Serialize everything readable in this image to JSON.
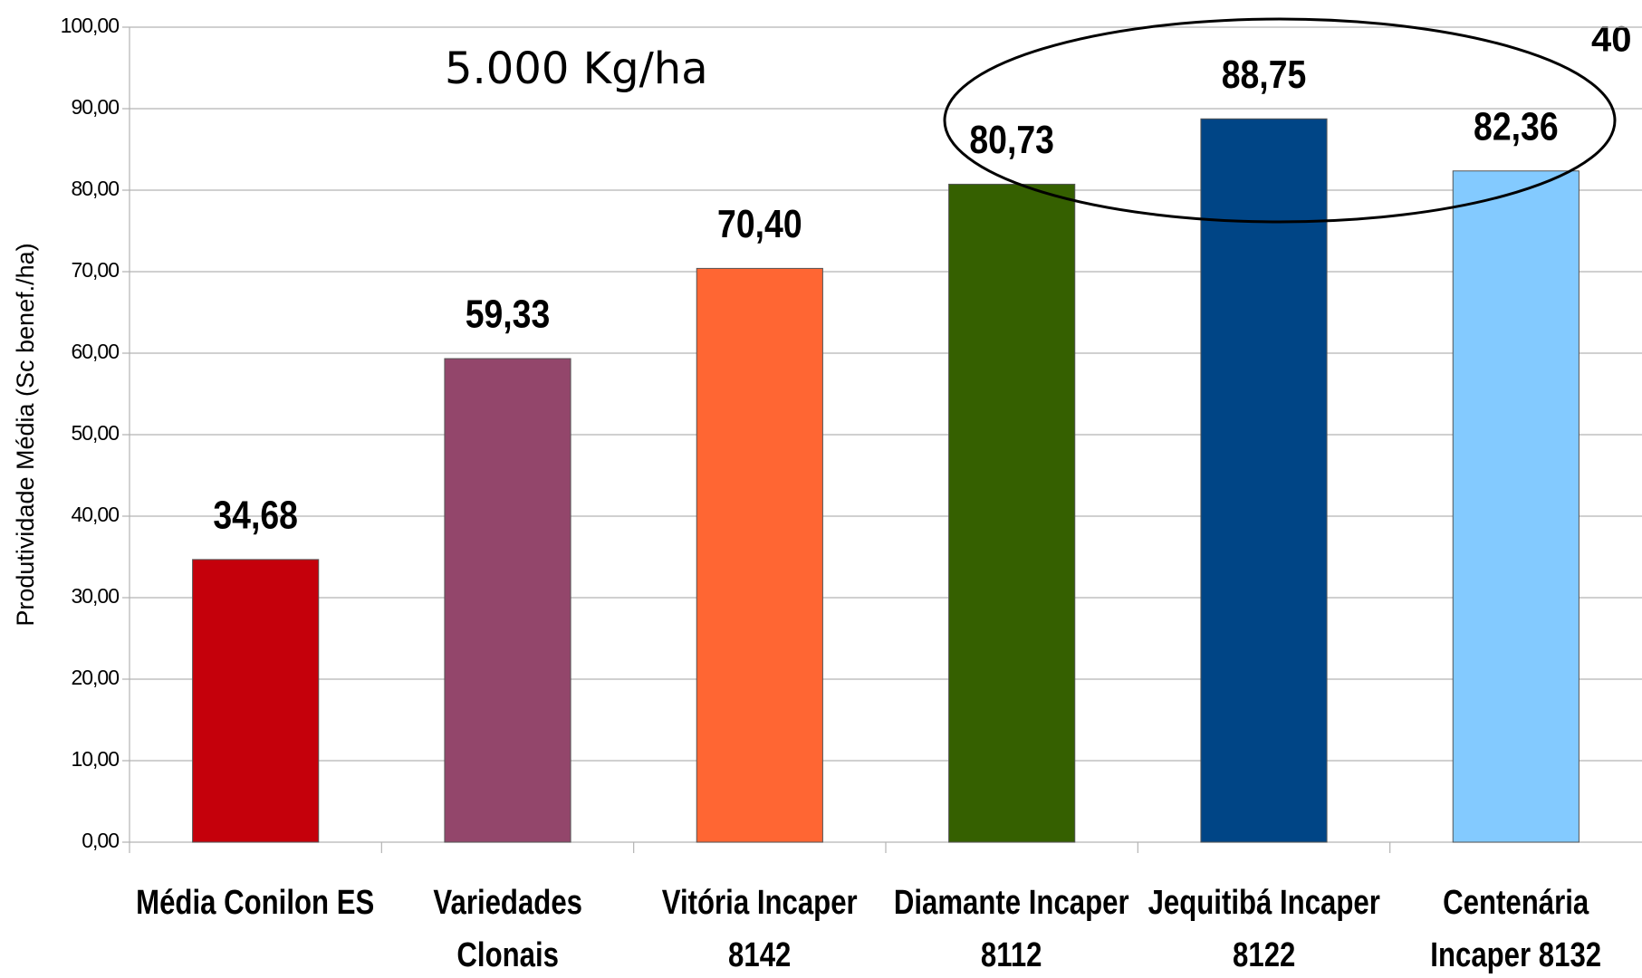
{
  "chart_data": {
    "type": "bar",
    "y_label": "Produtividade Média (Sc benef./ha)",
    "annotations": [
      "5.000 Kg/ha",
      "40"
    ],
    "categories": [
      "Média Conilon ES",
      "Variedades Clonais",
      "Vitória Incaper 8142",
      "Diamante Incaper 8112",
      "Jequitibá Incaper 8122",
      "Centenária Incaper 8132"
    ],
    "values": [
      34.68,
      59.33,
      70.4,
      80.73,
      88.75,
      82.36
    ],
    "value_labels": [
      "34,68",
      "59,33",
      "70,40",
      "80,73",
      "88,75",
      "82,36"
    ],
    "colors": [
      "#c5000b",
      "#93466b",
      "#ff6633",
      "#356000",
      "#004586",
      "#83caff"
    ],
    "ylim": [
      0,
      100
    ],
    "yticks": [
      {
        "value": 0,
        "label": "0,00"
      },
      {
        "value": 10,
        "label": "10,00"
      },
      {
        "value": 20,
        "label": "20,00"
      },
      {
        "value": 30,
        "label": "30,00"
      },
      {
        "value": 40,
        "label": "40,00"
      },
      {
        "value": 50,
        "label": "50,00"
      },
      {
        "value": 60,
        "label": "60,00"
      },
      {
        "value": 70,
        "label": "70,00"
      },
      {
        "value": 80,
        "label": "80,00"
      },
      {
        "value": 90,
        "label": "90,00"
      },
      {
        "value": 100,
        "label": "100,00"
      }
    ],
    "grid": true
  }
}
